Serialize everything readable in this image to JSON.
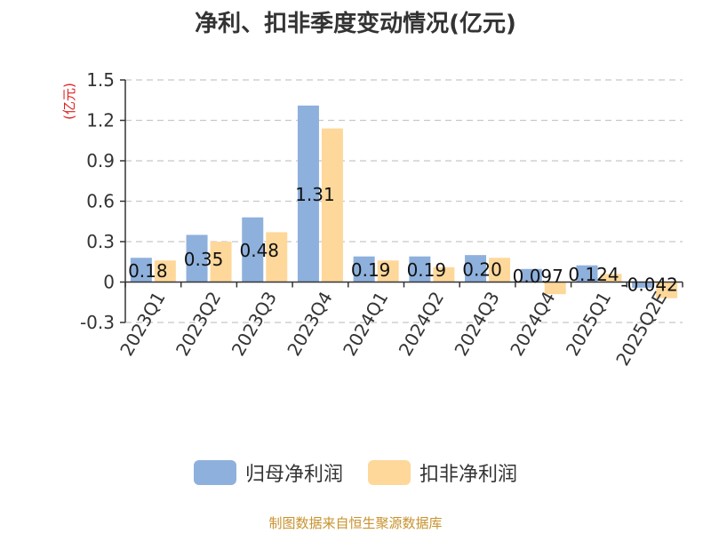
{
  "chart_data": {
    "type": "bar",
    "title": "净利、扣非季度变动情况(亿元)",
    "ylabel": "(亿元)",
    "xlabel": "",
    "categories": [
      "2023Q1",
      "2023Q2",
      "2023Q3",
      "2023Q4",
      "2024Q1",
      "2024Q2",
      "2024Q3",
      "2024Q4",
      "2025Q1",
      "2025Q2E"
    ],
    "series": [
      {
        "name": "归母净利润",
        "color": "#8eb0dc",
        "values": [
          0.18,
          0.35,
          0.48,
          1.31,
          0.19,
          0.19,
          0.2,
          0.097,
          0.124,
          -0.042
        ],
        "labels": [
          "0.18",
          "0.35",
          "0.48",
          "1.31",
          "0.19",
          "0.19",
          "0.20",
          "0.097",
          "0.124",
          "-0.042"
        ]
      },
      {
        "name": "扣非净利润",
        "color": "#fdd89a",
        "values": [
          0.16,
          0.3,
          0.37,
          1.14,
          0.16,
          0.11,
          0.18,
          -0.09,
          0.06,
          -0.12
        ]
      }
    ],
    "yticks": [
      "1.5",
      "1.2",
      "0.9",
      "0.6",
      "0.3",
      "0",
      "-0.3"
    ],
    "ylim": [
      -0.3,
      1.5
    ],
    "grid": true,
    "legend_position": "bottom"
  },
  "source": "制图数据来自恒生聚源数据库"
}
